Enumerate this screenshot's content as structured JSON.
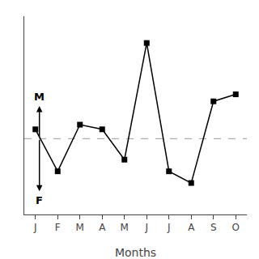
{
  "chart_data": {
    "type": "line",
    "categories": [
      "J",
      "F",
      "M",
      "A",
      "M",
      "J",
      "J",
      "A",
      "S",
      "O"
    ],
    "values": [
      0.08,
      -0.28,
      0.12,
      0.08,
      -0.18,
      0.82,
      -0.28,
      -0.38,
      0.32,
      0.38
    ],
    "color": "#000000",
    "marker": "square",
    "line_style": "solid",
    "xlabel": "Months",
    "ylim": [
      -0.65,
      1.05
    ],
    "yticks": [],
    "tick_labels": "x",
    "grid": false,
    "reference_line": {
      "value": 0.0,
      "color": "#999999",
      "line_style": "dashed"
    },
    "annotations": [
      {
        "text": "M",
        "x": 0.18,
        "y": 0.28
      },
      {
        "text": "F",
        "x": 0.18,
        "y": -0.45
      }
    ]
  }
}
